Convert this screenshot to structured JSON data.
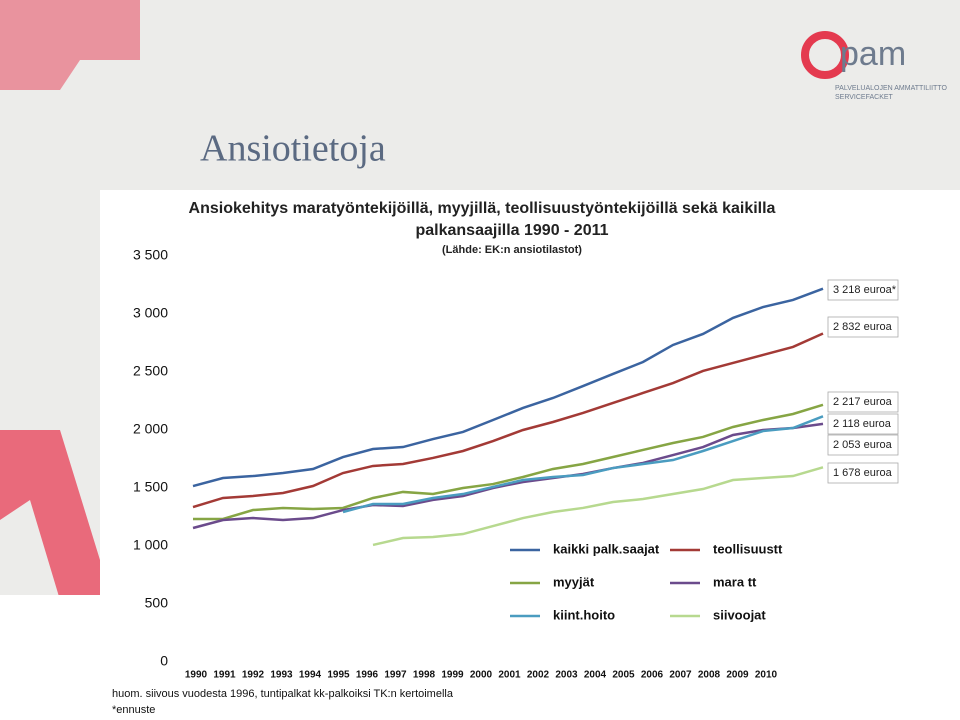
{
  "slide_title": "Ansiotietoja",
  "logo": {
    "name": "pam",
    "line1": "PALVELUALOJEN AMMATTILIITTO",
    "line2": "SERVICEFACKET"
  },
  "chart_data": {
    "type": "line",
    "title": "Ansiokehitys maratyöntekijöillä, myyjillä, teollisuustyöntekijöillä sekä kaikilla palkansaajilla 1990 - 2011",
    "subtitle": "(Lähde: EK:n ansiotilastot)",
    "categories": [
      "1990",
      "1991",
      "1992",
      "1993",
      "1994",
      "1995",
      "1996",
      "1997",
      "1998",
      "1999",
      "2000",
      "2001",
      "2002",
      "2003",
      "2004",
      "2005",
      "2006",
      "2007",
      "2008",
      "2009",
      "2010",
      null
    ],
    "ylim": [
      0,
      3500
    ],
    "yticks": [
      0,
      500,
      {
        "value": 1000,
        "label": "1 000"
      },
      {
        "value": 1500,
        "label": "1 500"
      },
      {
        "value": 2000,
        "label": "2 000"
      },
      {
        "value": 2500,
        "label": "2 500"
      },
      {
        "value": 3000,
        "label": "3 000"
      },
      {
        "value": 3500,
        "label": "3 500"
      }
    ],
    "series": [
      {
        "name": "kaikki palk.saajat",
        "color": "#3b64a0",
        "values": [
          1517,
          1586,
          1603,
          1629,
          1664,
          1767,
          1836,
          1853,
          1922,
          1983,
          2086,
          2190,
          2276,
          2379,
          2483,
          2586,
          2733,
          2828,
          2966,
          3060,
          3121,
          3218
        ]
      },
      {
        "name": "teollisuustt",
        "color": "#a33a36",
        "values": [
          1336,
          1414,
          1431,
          1457,
          1517,
          1629,
          1690,
          1707,
          1759,
          1819,
          1905,
          2000,
          2069,
          2147,
          2233,
          2319,
          2405,
          2509,
          2578,
          2647,
          2716,
          2832
        ]
      },
      {
        "name": "myyjät",
        "color": "#86a544",
        "values": [
          1233,
          1233,
          1310,
          1328,
          1319,
          1328,
          1414,
          1466,
          1448,
          1500,
          1534,
          1595,
          1664,
          1707,
          1767,
          1828,
          1888,
          1940,
          2026,
          2086,
          2138,
          2217
        ]
      },
      {
        "name": "mara tt",
        "color": "#6b4b8c",
        "values": [
          1155,
          1224,
          1241,
          1224,
          1241,
          1310,
          1353,
          1345,
          1397,
          1431,
          1500,
          1552,
          1586,
          1621,
          1672,
          1716,
          1784,
          1853,
          1957,
          2000,
          2017,
          2053
        ]
      },
      {
        "name": "kiint.hoito",
        "color": "#4a9cc0",
        "values": [
          null,
          null,
          null,
          null,
          null,
          1293,
          1362,
          1362,
          1414,
          1448,
          1509,
          1569,
          1595,
          1612,
          1672,
          1707,
          1741,
          1819,
          1905,
          1991,
          2017,
          2118
        ]
      },
      {
        "name": "siivoojat",
        "color": "#b7d98f",
        "values": [
          null,
          null,
          null,
          null,
          null,
          null,
          1009,
          1069,
          1078,
          1103,
          1172,
          1241,
          1293,
          1328,
          1379,
          1405,
          1448,
          1491,
          1569,
          1586,
          1603,
          1678
        ]
      }
    ],
    "annotations": [
      "3 218 euroa*",
      "2 832 euroa",
      "2 217 euroa",
      "2 118 euroa",
      "2 053 euroa",
      "1  678 euroa"
    ],
    "notes": [
      "huom. siivous vuodesta 1996, tuntipalkat kk-palkoiksi TK:n kertoimella",
      "*ennuste"
    ]
  }
}
